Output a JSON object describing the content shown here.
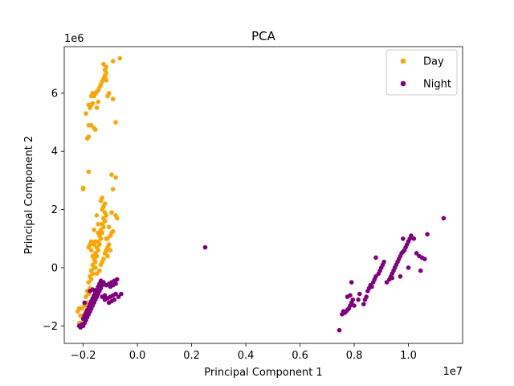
{
  "chart_data": {
    "type": "scatter",
    "title": "PCA",
    "xlabel": "Principal Component 1",
    "ylabel": "Principal Component 2",
    "x_offset_label": "1e7",
    "y_offset_label": "1e6",
    "x_scale": 10000000,
    "y_scale": 1000000,
    "xlim": [
      -0.27,
      1.2
    ],
    "ylim": [
      -2.6,
      7.6
    ],
    "x_ticks": [
      -0.2,
      0.0,
      0.2,
      0.4,
      0.6,
      0.8,
      1.0
    ],
    "x_tick_labels": [
      "−0.2",
      "0.0",
      "0.2",
      "0.4",
      "0.6",
      "0.8",
      "1.0"
    ],
    "y_ticks": [
      -2,
      0,
      2,
      4,
      6
    ],
    "y_tick_labels": [
      "−2",
      "0",
      "2",
      "4",
      "6"
    ],
    "grid": false,
    "legend_position": "upper right",
    "series": [
      {
        "name": "Day",
        "color": "#FFA500",
        "points": [
          [
            -2100000,
            -2000000
          ],
          [
            -2050000,
            -1950000
          ],
          [
            -2000000,
            -1850000
          ],
          [
            -2150000,
            -1900000
          ],
          [
            -2000000,
            -1700000
          ],
          [
            -1950000,
            -1600000
          ],
          [
            -2100000,
            -1650000
          ],
          [
            -1900000,
            -1500000
          ],
          [
            -2050000,
            -1400000
          ],
          [
            -1950000,
            -1300000
          ],
          [
            -1850000,
            -1200000
          ],
          [
            -1900000,
            -1000000
          ],
          [
            -1800000,
            -900000
          ],
          [
            -1850000,
            -800000
          ],
          [
            -1750000,
            -700000
          ],
          [
            -1800000,
            -500000
          ],
          [
            -1700000,
            -400000
          ],
          [
            -1750000,
            -300000
          ],
          [
            -1650000,
            -200000
          ],
          [
            -1700000,
            -100000
          ],
          [
            -1600000,
            0
          ],
          [
            -1650000,
            100000
          ],
          [
            -1550000,
            200000
          ],
          [
            -1600000,
            300000
          ],
          [
            -1500000,
            400000
          ],
          [
            -1550000,
            500000
          ],
          [
            -1450000,
            600000
          ],
          [
            -1500000,
            700000
          ],
          [
            -1400000,
            800000
          ],
          [
            -1450000,
            900000
          ],
          [
            -1350000,
            1000000
          ],
          [
            -1400000,
            1100000
          ],
          [
            -1300000,
            1200000
          ],
          [
            -1350000,
            1300000
          ],
          [
            -1250000,
            1400000
          ],
          [
            -1300000,
            1500000
          ],
          [
            -1200000,
            1600000
          ],
          [
            -1250000,
            1700000
          ],
          [
            -1150000,
            1800000
          ],
          [
            -1200000,
            1900000
          ],
          [
            -1300000,
            2000000
          ],
          [
            -1250000,
            2100000
          ],
          [
            -1200000,
            2200000
          ],
          [
            -1350000,
            2300000
          ],
          [
            -1300000,
            2400000
          ],
          [
            -1500000,
            1800000
          ],
          [
            -1450000,
            1500000
          ],
          [
            -1600000,
            1300000
          ],
          [
            -1100000,
            1000000
          ],
          [
            -1000000,
            1100000
          ],
          [
            -950000,
            1200000
          ],
          [
            -900000,
            1250000
          ],
          [
            -1050000,
            800000
          ],
          [
            -1150000,
            600000
          ],
          [
            -1200000,
            500000
          ],
          [
            -1100000,
            400000
          ],
          [
            -1250000,
            300000
          ],
          [
            -1300000,
            200000
          ],
          [
            -1350000,
            100000
          ],
          [
            -1400000,
            -100000
          ],
          [
            -1500000,
            -200000
          ],
          [
            -1550000,
            0
          ],
          [
            -1650000,
            400000
          ],
          [
            -1700000,
            600000
          ],
          [
            -1750000,
            800000
          ],
          [
            -1800000,
            700000
          ],
          [
            -1550000,
            900000
          ],
          [
            -1450000,
            1200000
          ],
          [
            -1050000,
            1400000
          ],
          [
            -1150000,
            1000000
          ],
          [
            -1100000,
            700000
          ],
          [
            -1000000,
            600000
          ],
          [
            -950000,
            3200000
          ],
          [
            -800000,
            3100000
          ],
          [
            -950000,
            1900000
          ],
          [
            -800000,
            1800000
          ],
          [
            -750000,
            1700000
          ],
          [
            -900000,
            2700000
          ],
          [
            -1800000,
            3300000
          ],
          [
            -2000000,
            2700000
          ],
          [
            -2000000,
            2750000
          ],
          [
            -1700000,
            900000
          ],
          [
            -1600000,
            800000
          ],
          [
            -2150000,
            -1400000
          ],
          [
            -2200000,
            -1500000
          ],
          [
            -1950000,
            -1800000
          ],
          [
            -1800000,
            4900000
          ],
          [
            -1700000,
            4900000
          ],
          [
            -1600000,
            4800000
          ],
          [
            -1550000,
            4750000
          ],
          [
            -1800000,
            4500000
          ],
          [
            -1850000,
            4450000
          ],
          [
            -1900000,
            5300000
          ],
          [
            -1750000,
            5500000
          ],
          [
            -1700000,
            5600000
          ],
          [
            -1800000,
            5600000
          ],
          [
            -1650000,
            5650000
          ],
          [
            -1600000,
            5900000
          ],
          [
            -1550000,
            6000000
          ],
          [
            -1500000,
            6050000
          ],
          [
            -1450000,
            6100000
          ],
          [
            -1400000,
            6200000
          ],
          [
            -1350000,
            6300000
          ],
          [
            -1300000,
            6400000
          ],
          [
            -1250000,
            6500000
          ],
          [
            -1200000,
            6600000
          ],
          [
            -1150000,
            6700000
          ],
          [
            -1200000,
            6800000
          ],
          [
            -1150000,
            6900000
          ],
          [
            -1250000,
            7000000
          ],
          [
            -1050000,
            6000000
          ],
          [
            -1100000,
            5900000
          ],
          [
            -900000,
            5800000
          ],
          [
            -800000,
            5000000
          ],
          [
            -900000,
            7100000
          ],
          [
            -650000,
            7200000
          ],
          [
            -1700000,
            5900000
          ],
          [
            -1650000,
            6000000
          ],
          [
            -1500000,
            5500000
          ],
          [
            -1450000,
            5700000
          ],
          [
            -1200000,
            6550000
          ],
          [
            -1150000,
            6450000
          ]
        ]
      },
      {
        "name": "Night",
        "color": "#800080",
        "points": [
          [
            -2100000,
            -2050000
          ],
          [
            -2000000,
            -2000000
          ],
          [
            -2050000,
            -1950000
          ],
          [
            -1950000,
            -1900000
          ],
          [
            -1900000,
            -1800000
          ],
          [
            -2000000,
            -1750000
          ],
          [
            -1850000,
            -1700000
          ],
          [
            -1950000,
            -1650000
          ],
          [
            -1800000,
            -1600000
          ],
          [
            -1900000,
            -1550000
          ],
          [
            -1750000,
            -1500000
          ],
          [
            -1850000,
            -1450000
          ],
          [
            -1700000,
            -1400000
          ],
          [
            -1800000,
            -1350000
          ],
          [
            -1650000,
            -1300000
          ],
          [
            -1750000,
            -1250000
          ],
          [
            -1600000,
            -1200000
          ],
          [
            -1700000,
            -1150000
          ],
          [
            -1550000,
            -1100000
          ],
          [
            -1650000,
            -1050000
          ],
          [
            -1500000,
            -1000000
          ],
          [
            -1600000,
            -950000
          ],
          [
            -1450000,
            -900000
          ],
          [
            -1550000,
            -850000
          ],
          [
            -1400000,
            -800000
          ],
          [
            -1500000,
            -750000
          ],
          [
            -1350000,
            -700000
          ],
          [
            -1450000,
            -650000
          ],
          [
            -1300000,
            -600000
          ],
          [
            -1400000,
            -550000
          ],
          [
            -1250000,
            -500000
          ],
          [
            -1350000,
            -450000
          ],
          [
            -1200000,
            -1100000
          ],
          [
            -1100000,
            -1050000
          ],
          [
            -1000000,
            -1000000
          ],
          [
            -900000,
            -950000
          ],
          [
            -800000,
            -900000
          ],
          [
            -1050000,
            -1200000
          ],
          [
            -950000,
            -1150000
          ],
          [
            -850000,
            -1100000
          ],
          [
            -1150000,
            -600000
          ],
          [
            -1050000,
            -550000
          ],
          [
            -950000,
            -500000
          ],
          [
            -850000,
            -450000
          ],
          [
            -750000,
            -400000
          ],
          [
            -1000000,
            -650000
          ],
          [
            -900000,
            -600000
          ],
          [
            -800000,
            -550000
          ],
          [
            -600000,
            -900000
          ],
          [
            -700000,
            -1000000
          ],
          [
            -2150000,
            -2000000
          ],
          [
            -1950000,
            -1200000
          ],
          [
            -1750000,
            -800000
          ],
          [
            -1650000,
            -750000
          ],
          [
            -1300000,
            -1000000
          ],
          [
            -1200000,
            -950000
          ],
          [
            2500000,
            700000
          ],
          [
            7450000,
            -2150000
          ],
          [
            7550000,
            -1600000
          ],
          [
            7650000,
            -1550000
          ],
          [
            7700000,
            -1500000
          ],
          [
            7750000,
            -1450000
          ],
          [
            7800000,
            -1400000
          ],
          [
            7850000,
            -1300000
          ],
          [
            7900000,
            -1200000
          ],
          [
            7750000,
            -1000000
          ],
          [
            7850000,
            -950000
          ],
          [
            7950000,
            -1100000
          ],
          [
            7900000,
            -500000
          ],
          [
            8200000,
            -900000
          ],
          [
            8350000,
            -1250000
          ],
          [
            8400000,
            -1100000
          ],
          [
            8450000,
            -1000000
          ],
          [
            8500000,
            -800000
          ],
          [
            8550000,
            -700000
          ],
          [
            8600000,
            -600000
          ],
          [
            8650000,
            -650000
          ],
          [
            8700000,
            -500000
          ],
          [
            8750000,
            -400000
          ],
          [
            8800000,
            -300000
          ],
          [
            8900000,
            -200000
          ],
          [
            8950000,
            -100000
          ],
          [
            9000000,
            0
          ],
          [
            9050000,
            100000
          ],
          [
            9100000,
            200000
          ],
          [
            9200000,
            -500000
          ],
          [
            9300000,
            -400000
          ],
          [
            9350000,
            -300000
          ],
          [
            9400000,
            -200000
          ],
          [
            9450000,
            -100000
          ],
          [
            9500000,
            0
          ],
          [
            9550000,
            100000
          ],
          [
            9600000,
            200000
          ],
          [
            9650000,
            300000
          ],
          [
            9700000,
            400000
          ],
          [
            9750000,
            500000
          ],
          [
            9800000,
            550000
          ],
          [
            9850000,
            600000
          ],
          [
            9900000,
            700000
          ],
          [
            9950000,
            800000
          ],
          [
            10000000,
            900000
          ],
          [
            10050000,
            1000000
          ],
          [
            10100000,
            1100000
          ],
          [
            10200000,
            1000000
          ],
          [
            10300000,
            500000
          ],
          [
            10400000,
            400000
          ],
          [
            10500000,
            350000
          ],
          [
            10600000,
            300000
          ],
          [
            10450000,
            -100000
          ],
          [
            10000000,
            0
          ],
          [
            9700000,
            -300000
          ],
          [
            9400000,
            -350000
          ],
          [
            11300000,
            1700000
          ],
          [
            10700000,
            1150000
          ],
          [
            9800000,
            1000000
          ],
          [
            8800000,
            350000
          ],
          [
            8150000,
            -1100000
          ],
          [
            8000000,
            -1300000
          ],
          [
            7600000,
            -1500000
          ]
        ]
      }
    ]
  }
}
